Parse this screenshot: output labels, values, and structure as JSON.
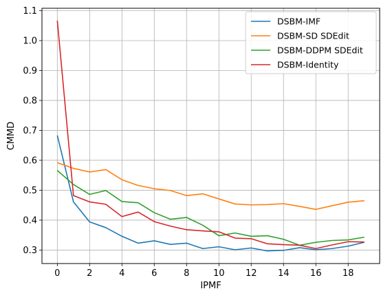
{
  "chart_data": {
    "type": "line",
    "title": "",
    "xlabel": "IPMF",
    "ylabel": "CMMD",
    "xlim": [
      -0.95,
      19.95
    ],
    "ylim": [
      0.255,
      1.108
    ],
    "xticks": [
      0,
      2,
      4,
      6,
      8,
      10,
      12,
      14,
      16,
      18
    ],
    "xtick_labels": [
      "0",
      "2",
      "4",
      "6",
      "8",
      "10",
      "12",
      "14",
      "16",
      "18"
    ],
    "yticks": [
      0.3,
      0.4,
      0.5,
      0.6,
      0.7,
      0.8,
      0.9,
      1.0,
      1.1
    ],
    "ytick_labels": [
      "0.3",
      "0.4",
      "0.5",
      "0.6",
      "0.7",
      "0.8",
      "0.9",
      "1.0",
      "1.1"
    ],
    "grid": true,
    "legend_position": "top-right",
    "x": [
      0,
      1,
      2,
      3,
      4,
      5,
      6,
      7,
      8,
      9,
      10,
      11,
      12,
      13,
      14,
      15,
      16,
      17,
      18,
      19
    ],
    "series": [
      {
        "name": "DSBM-IMF",
        "color": "#1f77b4",
        "values": [
          0.683,
          0.461,
          0.394,
          0.375,
          0.346,
          0.323,
          0.331,
          0.319,
          0.323,
          0.305,
          0.311,
          0.301,
          0.307,
          0.297,
          0.299,
          0.308,
          0.301,
          0.305,
          0.313,
          0.326
        ]
      },
      {
        "name": "DSBM-SD SDEdit",
        "color": "#ff7f0e",
        "values": [
          0.592,
          0.573,
          0.561,
          0.569,
          0.535,
          0.516,
          0.505,
          0.499,
          0.482,
          0.488,
          0.471,
          0.454,
          0.451,
          0.452,
          0.455,
          0.446,
          0.436,
          0.448,
          0.46,
          0.465
        ]
      },
      {
        "name": "DSBM-DDPM SDEdit",
        "color": "#2ca02c",
        "values": [
          0.566,
          0.519,
          0.486,
          0.499,
          0.462,
          0.458,
          0.425,
          0.403,
          0.409,
          0.383,
          0.348,
          0.357,
          0.346,
          0.348,
          0.336,
          0.316,
          0.326,
          0.332,
          0.334,
          0.343
        ]
      },
      {
        "name": "DSBM-Identity",
        "color": "#d62728",
        "values": [
          1.067,
          0.482,
          0.461,
          0.453,
          0.412,
          0.427,
          0.395,
          0.38,
          0.368,
          0.364,
          0.361,
          0.34,
          0.338,
          0.321,
          0.318,
          0.316,
          0.305,
          0.317,
          0.328,
          0.327
        ]
      }
    ]
  }
}
